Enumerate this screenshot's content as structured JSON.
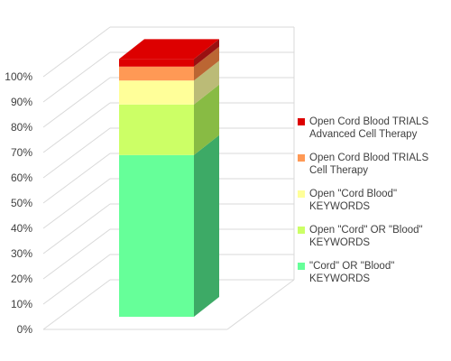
{
  "chart_data": {
    "type": "bar",
    "stacked": true,
    "three_d": true,
    "categories": [
      ""
    ],
    "series": [
      {
        "name": "\"Cord\" OR \"Blood\" KEYWORDS",
        "values": [
          64
        ],
        "color": "#66ff99",
        "side_color": "#3daa66"
      },
      {
        "name": "Open \"Cord\" OR \"Blood\" KEYWORDS",
        "values": [
          20
        ],
        "color": "#ccff66",
        "side_color": "#88bb44"
      },
      {
        "name": "Open \"Cord Blood\" KEYWORDS",
        "values": [
          9.5
        ],
        "color": "#ffff99",
        "side_color": "#bbbb77"
      },
      {
        "name": "Open Cord Blood TRIALS Cell Therapy",
        "values": [
          5.5
        ],
        "color": "#ff9955",
        "side_color": "#bb6633"
      },
      {
        "name": "Open Cord Blood TRIALS Advanced Cell Therapy",
        "values": [
          3
        ],
        "color": "#dd0000",
        "side_color": "#991111"
      }
    ],
    "yticks": [
      "0%",
      "10%",
      "20%",
      "30%",
      "40%",
      "50%",
      "60%",
      "70%",
      "80%",
      "90%",
      "100%"
    ],
    "ylim": [
      0,
      100
    ],
    "ylabel": "",
    "xlabel": "",
    "title": "",
    "grid": true,
    "legend_position": "right"
  }
}
